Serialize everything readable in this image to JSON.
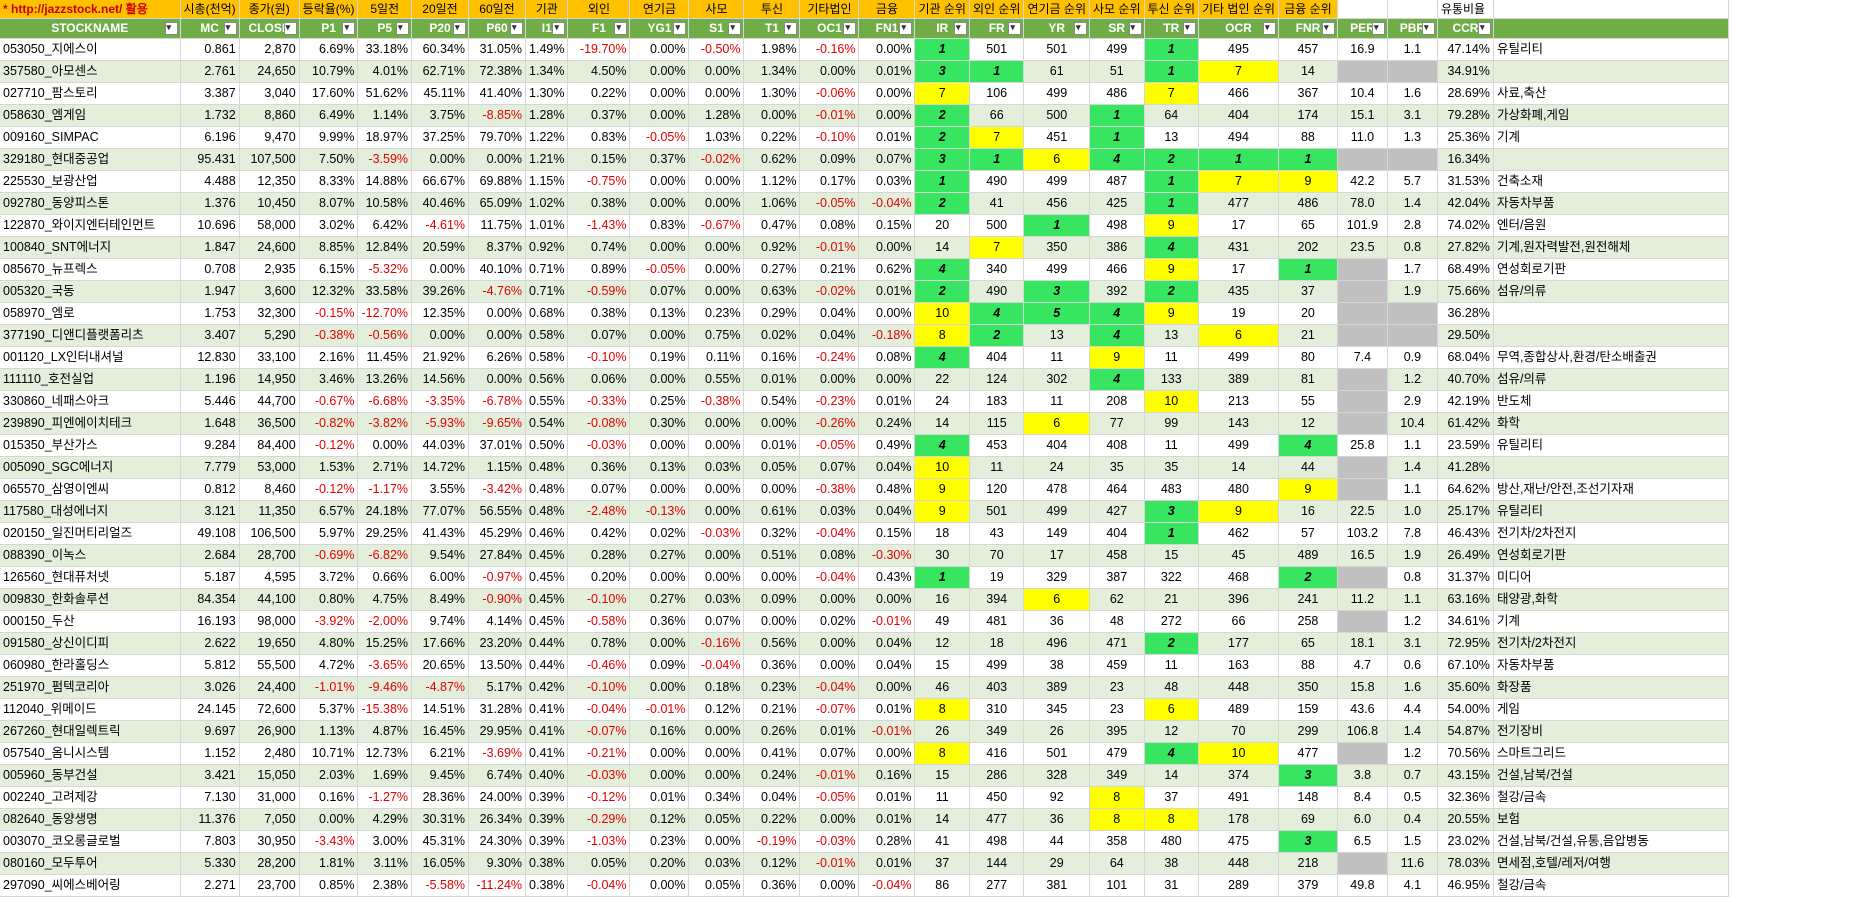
{
  "header_top": {
    "url": "* http://jazzstock.net/ 활용",
    "labels": [
      "시총(천억)",
      "종가(원)",
      "등락율(%)",
      "5일전",
      "20일전",
      "60일전",
      "기관",
      "외인",
      "연기금",
      "사모",
      "투신",
      "기타법인",
      "금융",
      "기관 순위",
      "외인 순위",
      "연기금 순위",
      "사모 순위",
      "투신 순위",
      "기타 법인 순위",
      "금융 순위",
      "",
      "",
      "유통비율",
      ""
    ]
  },
  "columns": [
    "STOCKNAME",
    "MC",
    "CLOSE",
    "P1",
    "P5",
    "P20",
    "P60",
    "I1",
    "F1",
    "YG1",
    "S1",
    "T1",
    "OC1",
    "FN1",
    "IR",
    "FR",
    "YR",
    "SR",
    "TR",
    "OCR",
    "FNR",
    "PER",
    "PBR",
    "CCR",
    ""
  ],
  "colors": {
    "header_top": "#ffc000",
    "header_bottom": "#70ad47",
    "row_alt": "#e3efda",
    "rank_green": "#38e561",
    "rank_yellow": "#ffff00",
    "missing_gray": "#c0c0c0",
    "negative": "#e00000"
  },
  "rows": [
    [
      "053050_지에스이",
      "0.861",
      "2,870",
      "6.69%",
      "33.18%",
      "60.34%",
      "31.05%",
      "1.49%",
      "-19.70%",
      "0.00%",
      "-0.50%",
      "1.98%",
      "-0.16%",
      "0.00%",
      "1",
      "501",
      "501",
      "499",
      "1",
      "495",
      "457",
      "16.9",
      "1.1",
      "47.14%",
      "유틸리티"
    ],
    [
      "357580_아모센스",
      "2.761",
      "24,650",
      "10.79%",
      "4.01%",
      "62.71%",
      "72.38%",
      "1.34%",
      "4.50%",
      "0.00%",
      "0.00%",
      "1.34%",
      "0.00%",
      "0.01%",
      "3",
      "1",
      "61",
      "51",
      "1",
      "7",
      "14",
      "",
      "",
      "34.91%",
      ""
    ],
    [
      "027710_팜스토리",
      "3.387",
      "3,040",
      "17.60%",
      "51.62%",
      "45.11%",
      "41.40%",
      "1.30%",
      "0.22%",
      "0.00%",
      "0.00%",
      "1.30%",
      "-0.06%",
      "0.00%",
      "7",
      "106",
      "499",
      "486",
      "7",
      "466",
      "367",
      "10.4",
      "1.6",
      "28.69%",
      "사료,축산"
    ],
    [
      "058630_엠게임",
      "1.732",
      "8,860",
      "6.49%",
      "1.14%",
      "3.75%",
      "-8.85%",
      "1.28%",
      "0.37%",
      "0.00%",
      "1.28%",
      "0.00%",
      "-0.01%",
      "0.00%",
      "2",
      "66",
      "500",
      "1",
      "64",
      "404",
      "174",
      "15.1",
      "3.1",
      "79.28%",
      "가상화폐,게임"
    ],
    [
      "009160_SIMPAC",
      "6.196",
      "9,470",
      "9.99%",
      "18.97%",
      "37.25%",
      "79.70%",
      "1.22%",
      "0.83%",
      "-0.05%",
      "1.03%",
      "0.22%",
      "-0.10%",
      "0.01%",
      "2",
      "7",
      "451",
      "1",
      "13",
      "494",
      "88",
      "11.0",
      "1.3",
      "25.36%",
      "기계"
    ],
    [
      "329180_현대중공업",
      "95.431",
      "107,500",
      "7.50%",
      "-3.59%",
      "0.00%",
      "0.00%",
      "1.21%",
      "0.15%",
      "0.37%",
      "-0.02%",
      "0.62%",
      "0.09%",
      "0.07%",
      "3",
      "1",
      "6",
      "4",
      "2",
      "1",
      "1",
      "",
      "",
      "16.34%",
      ""
    ],
    [
      "225530_보광산업",
      "4.488",
      "12,350",
      "8.33%",
      "14.88%",
      "66.67%",
      "69.88%",
      "1.15%",
      "-0.75%",
      "0.00%",
      "0.00%",
      "1.12%",
      "0.17%",
      "0.03%",
      "1",
      "490",
      "499",
      "487",
      "1",
      "7",
      "9",
      "42.2",
      "5.7",
      "31.53%",
      "건축소재"
    ],
    [
      "092780_동양피스톤",
      "1.376",
      "10,450",
      "8.07%",
      "10.58%",
      "40.46%",
      "65.09%",
      "1.02%",
      "0.38%",
      "0.00%",
      "0.00%",
      "1.06%",
      "-0.05%",
      "-0.04%",
      "2",
      "41",
      "456",
      "425",
      "1",
      "477",
      "486",
      "78.0",
      "1.4",
      "42.04%",
      "자동차부품"
    ],
    [
      "122870_와이지엔터테인먼트",
      "10.696",
      "58,000",
      "3.02%",
      "6.42%",
      "-4.61%",
      "11.75%",
      "1.01%",
      "-1.43%",
      "0.83%",
      "-0.67%",
      "0.47%",
      "0.08%",
      "0.15%",
      "20",
      "500",
      "1",
      "498",
      "9",
      "17",
      "65",
      "101.9",
      "2.8",
      "74.02%",
      "엔터/음원"
    ],
    [
      "100840_SNT에너지",
      "1.847",
      "24,600",
      "8.85%",
      "12.84%",
      "20.59%",
      "8.37%",
      "0.92%",
      "0.74%",
      "0.00%",
      "0.00%",
      "0.92%",
      "-0.01%",
      "0.00%",
      "14",
      "7",
      "350",
      "386",
      "4",
      "431",
      "202",
      "23.5",
      "0.8",
      "27.82%",
      "기계,원자력발전,원전해체"
    ],
    [
      "085670_뉴프렉스",
      "0.708",
      "2,935",
      "6.15%",
      "-5.32%",
      "0.00%",
      "40.10%",
      "0.71%",
      "0.89%",
      "-0.05%",
      "0.00%",
      "0.27%",
      "0.21%",
      "0.62%",
      "4",
      "340",
      "499",
      "466",
      "9",
      "17",
      "1",
      "",
      "1.7",
      "68.49%",
      "연성회로기판"
    ],
    [
      "005320_국동",
      "1.947",
      "3,600",
      "12.32%",
      "33.58%",
      "39.26%",
      "-4.76%",
      "0.71%",
      "-0.59%",
      "0.07%",
      "0.00%",
      "0.63%",
      "-0.02%",
      "0.01%",
      "2",
      "490",
      "3",
      "392",
      "2",
      "435",
      "37",
      "",
      "1.9",
      "75.66%",
      "섬유/의류"
    ],
    [
      "058970_엠로",
      "1.753",
      "32,300",
      "-0.15%",
      "-12.70%",
      "12.35%",
      "0.00%",
      "0.68%",
      "0.38%",
      "0.13%",
      "0.23%",
      "0.29%",
      "0.04%",
      "0.00%",
      "10",
      "4",
      "5",
      "4",
      "9",
      "19",
      "20",
      "",
      "",
      "36.28%",
      ""
    ],
    [
      "377190_디앤디플랫폼리츠",
      "3.407",
      "5,290",
      "-0.38%",
      "-0.56%",
      "0.00%",
      "0.00%",
      "0.58%",
      "0.07%",
      "0.00%",
      "0.75%",
      "0.02%",
      "0.04%",
      "-0.18%",
      "8",
      "2",
      "13",
      "4",
      "13",
      "6",
      "21",
      "",
      "",
      "29.50%",
      ""
    ],
    [
      "001120_LX인터내셔널",
      "12.830",
      "33,100",
      "2.16%",
      "11.45%",
      "21.92%",
      "6.26%",
      "0.58%",
      "-0.10%",
      "0.19%",
      "0.11%",
      "0.16%",
      "-0.24%",
      "0.08%",
      "4",
      "404",
      "11",
      "9",
      "11",
      "499",
      "80",
      "7.4",
      "0.9",
      "68.04%",
      "무역,종합상사,환경/탄소배출권"
    ],
    [
      "111110_호전실업",
      "1.196",
      "14,950",
      "3.46%",
      "13.26%",
      "14.56%",
      "0.00%",
      "0.56%",
      "0.06%",
      "0.00%",
      "0.55%",
      "0.01%",
      "0.00%",
      "0.00%",
      "22",
      "124",
      "302",
      "4",
      "133",
      "389",
      "81",
      "",
      "1.2",
      "40.70%",
      "섬유/의류"
    ],
    [
      "330860_네패스아크",
      "5.446",
      "44,700",
      "-0.67%",
      "-6.68%",
      "-3.35%",
      "-6.78%",
      "0.55%",
      "-0.33%",
      "0.25%",
      "-0.38%",
      "0.54%",
      "-0.23%",
      "0.01%",
      "24",
      "183",
      "11",
      "208",
      "10",
      "213",
      "55",
      "",
      "2.9",
      "42.19%",
      "반도체"
    ],
    [
      "239890_피엔에이치테크",
      "1.648",
      "36,500",
      "-0.82%",
      "-3.82%",
      "-5.93%",
      "-9.65%",
      "0.54%",
      "-0.08%",
      "0.30%",
      "0.00%",
      "0.00%",
      "-0.26%",
      "0.24%",
      "14",
      "115",
      "6",
      "77",
      "99",
      "143",
      "12",
      "",
      "10.4",
      "61.42%",
      "화학"
    ],
    [
      "015350_부산가스",
      "9.284",
      "84,400",
      "-0.12%",
      "0.00%",
      "44.03%",
      "37.01%",
      "0.50%",
      "-0.03%",
      "0.00%",
      "0.00%",
      "0.01%",
      "-0.05%",
      "0.49%",
      "4",
      "453",
      "404",
      "408",
      "11",
      "499",
      "4",
      "25.8",
      "1.1",
      "23.59%",
      "유틸리티"
    ],
    [
      "005090_SGC에너지",
      "7.779",
      "53,000",
      "1.53%",
      "2.71%",
      "14.72%",
      "1.15%",
      "0.48%",
      "0.36%",
      "0.13%",
      "0.03%",
      "0.05%",
      "0.07%",
      "0.04%",
      "10",
      "11",
      "24",
      "35",
      "35",
      "14",
      "44",
      "",
      "1.4",
      "41.28%",
      ""
    ],
    [
      "065570_삼영이엔씨",
      "0.812",
      "8,460",
      "-0.12%",
      "-1.17%",
      "3.55%",
      "-3.42%",
      "0.48%",
      "0.07%",
      "0.00%",
      "0.00%",
      "0.00%",
      "-0.38%",
      "0.48%",
      "9",
      "120",
      "478",
      "464",
      "483",
      "480",
      "9",
      "",
      "1.1",
      "64.62%",
      "방산,재난/안전,조선기자재"
    ],
    [
      "117580_대성에너지",
      "3.121",
      "11,350",
      "6.57%",
      "24.18%",
      "77.07%",
      "56.55%",
      "0.48%",
      "-2.48%",
      "-0.13%",
      "0.00%",
      "0.61%",
      "0.03%",
      "0.04%",
      "9",
      "501",
      "499",
      "427",
      "3",
      "9",
      "16",
      "22.5",
      "1.0",
      "25.17%",
      "유틸리티"
    ],
    [
      "020150_일진머티리얼즈",
      "49.108",
      "106,500",
      "5.97%",
      "29.25%",
      "41.43%",
      "45.29%",
      "0.46%",
      "0.42%",
      "0.02%",
      "-0.03%",
      "0.32%",
      "-0.04%",
      "0.15%",
      "18",
      "43",
      "149",
      "404",
      "1",
      "462",
      "57",
      "103.2",
      "7.8",
      "46.43%",
      "전기차/2차전지"
    ],
    [
      "088390_이녹스",
      "2.684",
      "28,700",
      "-0.69%",
      "-6.82%",
      "9.54%",
      "27.84%",
      "0.45%",
      "0.28%",
      "0.27%",
      "0.00%",
      "0.51%",
      "0.08%",
      "-0.30%",
      "30",
      "70",
      "17",
      "458",
      "15",
      "45",
      "489",
      "16.5",
      "1.9",
      "26.49%",
      "연성회로기판"
    ],
    [
      "126560_현대퓨처넷",
      "5.187",
      "4,595",
      "3.72%",
      "0.66%",
      "6.00%",
      "-0.97%",
      "0.45%",
      "0.20%",
      "0.00%",
      "0.00%",
      "0.00%",
      "-0.04%",
      "0.43%",
      "1",
      "19",
      "329",
      "387",
      "322",
      "468",
      "2",
      "",
      "0.8",
      "31.37%",
      "미디어"
    ],
    [
      "009830_한화솔루션",
      "84.354",
      "44,100",
      "0.80%",
      "4.75%",
      "8.49%",
      "-0.90%",
      "0.45%",
      "-0.10%",
      "0.27%",
      "0.03%",
      "0.09%",
      "0.00%",
      "0.00%",
      "16",
      "394",
      "6",
      "62",
      "21",
      "396",
      "241",
      "11.2",
      "1.1",
      "63.16%",
      "태양광,화학"
    ],
    [
      "000150_두산",
      "16.193",
      "98,000",
      "-3.92%",
      "-2.00%",
      "9.74%",
      "4.14%",
      "0.45%",
      "-0.58%",
      "0.36%",
      "0.07%",
      "0.00%",
      "0.02%",
      "-0.01%",
      "49",
      "481",
      "36",
      "48",
      "272",
      "66",
      "258",
      "",
      "1.2",
      "34.61%",
      "기계"
    ],
    [
      "091580_상신이디피",
      "2.622",
      "19,650",
      "4.80%",
      "15.25%",
      "17.66%",
      "23.20%",
      "0.44%",
      "0.78%",
      "0.00%",
      "-0.16%",
      "0.56%",
      "0.00%",
      "0.04%",
      "12",
      "18",
      "496",
      "471",
      "2",
      "177",
      "65",
      "18.1",
      "3.1",
      "72.95%",
      "전기차/2차전지"
    ],
    [
      "060980_한라홀딩스",
      "5.812",
      "55,500",
      "4.72%",
      "-3.65%",
      "20.65%",
      "13.50%",
      "0.44%",
      "-0.46%",
      "0.09%",
      "-0.04%",
      "0.36%",
      "0.00%",
      "0.04%",
      "15",
      "499",
      "38",
      "459",
      "11",
      "163",
      "88",
      "4.7",
      "0.6",
      "67.10%",
      "자동차부품"
    ],
    [
      "251970_펌텍코리아",
      "3.026",
      "24,400",
      "-1.01%",
      "-9.46%",
      "-4.87%",
      "5.17%",
      "0.42%",
      "-0.10%",
      "0.00%",
      "0.18%",
      "0.23%",
      "-0.04%",
      "0.00%",
      "46",
      "403",
      "389",
      "23",
      "48",
      "448",
      "350",
      "15.8",
      "1.6",
      "35.60%",
      "화장품"
    ],
    [
      "112040_위메이드",
      "24.145",
      "72,600",
      "5.37%",
      "-15.38%",
      "14.51%",
      "31.28%",
      "0.41%",
      "-0.04%",
      "-0.01%",
      "0.12%",
      "0.21%",
      "-0.07%",
      "0.01%",
      "8",
      "310",
      "345",
      "23",
      "6",
      "489",
      "159",
      "43.6",
      "4.4",
      "54.00%",
      "게임"
    ],
    [
      "267260_현대일렉트릭",
      "9.697",
      "26,900",
      "1.13%",
      "4.87%",
      "16.45%",
      "29.95%",
      "0.41%",
      "-0.07%",
      "0.16%",
      "0.00%",
      "0.26%",
      "0.01%",
      "-0.01%",
      "26",
      "349",
      "26",
      "395",
      "12",
      "70",
      "299",
      "106.8",
      "1.4",
      "54.87%",
      "전기장비"
    ],
    [
      "057540_옴니시스템",
      "1.152",
      "2,480",
      "10.71%",
      "12.73%",
      "6.21%",
      "-3.69%",
      "0.41%",
      "-0.21%",
      "0.00%",
      "0.00%",
      "0.41%",
      "0.07%",
      "0.00%",
      "8",
      "416",
      "501",
      "479",
      "4",
      "10",
      "477",
      "",
      "1.2",
      "70.56%",
      "스마트그리드"
    ],
    [
      "005960_동부건설",
      "3.421",
      "15,050",
      "2.03%",
      "1.69%",
      "9.45%",
      "6.74%",
      "0.40%",
      "-0.03%",
      "0.00%",
      "0.00%",
      "0.24%",
      "-0.01%",
      "0.16%",
      "15",
      "286",
      "328",
      "349",
      "14",
      "374",
      "3",
      "3.8",
      "0.7",
      "43.15%",
      "건설,남북/건설"
    ],
    [
      "002240_고려제강",
      "7.130",
      "31,000",
      "0.16%",
      "-1.27%",
      "28.36%",
      "24.00%",
      "0.39%",
      "-0.12%",
      "0.01%",
      "0.34%",
      "0.04%",
      "-0.05%",
      "0.01%",
      "11",
      "450",
      "92",
      "8",
      "37",
      "491",
      "148",
      "8.4",
      "0.5",
      "32.36%",
      "철강/금속"
    ],
    [
      "082640_동양생명",
      "11.376",
      "7,050",
      "0.00%",
      "4.29%",
      "30.31%",
      "26.34%",
      "0.39%",
      "-0.29%",
      "0.12%",
      "0.05%",
      "0.22%",
      "0.00%",
      "0.01%",
      "14",
      "477",
      "36",
      "8",
      "8",
      "178",
      "69",
      "6.0",
      "0.4",
      "20.55%",
      "보험"
    ],
    [
      "003070_코오롱글로벌",
      "7.803",
      "30,950",
      "-3.43%",
      "3.00%",
      "45.31%",
      "24.30%",
      "0.39%",
      "-1.03%",
      "0.23%",
      "0.00%",
      "-0.19%",
      "-0.03%",
      "0.28%",
      "41",
      "498",
      "44",
      "358",
      "480",
      "475",
      "3",
      "6.5",
      "1.5",
      "23.02%",
      "건설,남북/건설,유통,음압병동"
    ],
    [
      "080160_모두투어",
      "5.330",
      "28,200",
      "1.81%",
      "3.11%",
      "16.05%",
      "9.30%",
      "0.38%",
      "0.05%",
      "0.20%",
      "0.03%",
      "0.12%",
      "-0.01%",
      "0.01%",
      "37",
      "144",
      "29",
      "64",
      "38",
      "448",
      "218",
      "",
      "11.6",
      "78.03%",
      "면세점,호텔/레저/여행"
    ],
    [
      "297090_씨에스베어링",
      "2.271",
      "23,700",
      "0.85%",
      "2.38%",
      "-5.58%",
      "-11.24%",
      "0.38%",
      "-0.04%",
      "0.00%",
      "0.05%",
      "0.36%",
      "0.00%",
      "-0.04%",
      "86",
      "277",
      "381",
      "101",
      "31",
      "289",
      "379",
      "49.8",
      "4.1",
      "46.95%",
      "철강/금속"
    ]
  ]
}
